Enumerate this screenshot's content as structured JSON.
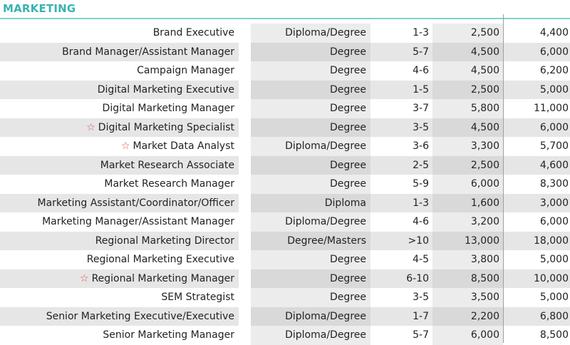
{
  "section": {
    "title": "MARKETING"
  },
  "colors": {
    "title": "#3bb3b0",
    "rule": "#7fd0cc",
    "band_light": "#ffffff",
    "band_mid": "#ececec",
    "band_dark": "#d9d9d9",
    "row_alt": "#e6e6e6",
    "star": "#d9534f"
  },
  "icons": {
    "highlight": "star-outline-icon"
  },
  "rows": [
    {
      "role": "Brand Executive",
      "qualification": "Diploma/Degree",
      "experience": "1-3",
      "min": "2,500",
      "max": "4,400",
      "starred": false
    },
    {
      "role": "Brand Manager/Assistant Manager",
      "qualification": "Degree",
      "experience": "5-7",
      "min": "4,500",
      "max": "6,000",
      "starred": false
    },
    {
      "role": "Campaign Manager",
      "qualification": "Degree",
      "experience": "4-6",
      "min": "4,500",
      "max": "6,200",
      "starred": false
    },
    {
      "role": "Digital Marketing Executive",
      "qualification": "Degree",
      "experience": "1-5",
      "min": "2,500",
      "max": "5,000",
      "starred": false
    },
    {
      "role": "Digital Marketing Manager",
      "qualification": "Degree",
      "experience": "3-7",
      "min": "5,800",
      "max": "11,000",
      "starred": false
    },
    {
      "role": "Digital Marketing Specialist",
      "qualification": "Degree",
      "experience": "3-5",
      "min": "4,500",
      "max": "6,000",
      "starred": true
    },
    {
      "role": "Market Data Analyst",
      "qualification": "Diploma/Degree",
      "experience": "3-6",
      "min": "3,300",
      "max": "5,700",
      "starred": true
    },
    {
      "role": "Market Research Associate",
      "qualification": "Degree",
      "experience": "2-5",
      "min": "2,500",
      "max": "4,600",
      "starred": false
    },
    {
      "role": "Market Research Manager",
      "qualification": "Degree",
      "experience": "5-9",
      "min": "6,000",
      "max": "8,300",
      "starred": false
    },
    {
      "role": "Marketing Assistant/Coordinator/Officer",
      "qualification": "Diploma",
      "experience": "1-3",
      "min": "1,600",
      "max": "3,000",
      "starred": false
    },
    {
      "role": "Marketing Manager/Assistant Manager",
      "qualification": "Diploma/Degree",
      "experience": "4-6",
      "min": "3,200",
      "max": "6,000",
      "starred": false
    },
    {
      "role": "Regional Marketing Director",
      "qualification": "Degree/Masters",
      "experience": ">10",
      "min": "13,000",
      "max": "18,000",
      "starred": false
    },
    {
      "role": "Regional Marketing Executive",
      "qualification": "Degree",
      "experience": "4-5",
      "min": "3,800",
      "max": "5,000",
      "starred": false
    },
    {
      "role": "Regional Marketing Manager",
      "qualification": "Degree",
      "experience": "6-10",
      "min": "8,500",
      "max": "10,000",
      "starred": true
    },
    {
      "role": "SEM Strategist",
      "qualification": "Degree",
      "experience": "3-5",
      "min": "3,500",
      "max": "5,000",
      "starred": false
    },
    {
      "role": "Senior Marketing Executive/Executive",
      "qualification": "Diploma/Degree",
      "experience": "1-7",
      "min": "2,200",
      "max": "6,800",
      "starred": false
    },
    {
      "role": "Senior Marketing Manager",
      "qualification": "Diploma/Degree",
      "experience": "5-7",
      "min": "6,000",
      "max": "8,500",
      "starred": false
    }
  ]
}
